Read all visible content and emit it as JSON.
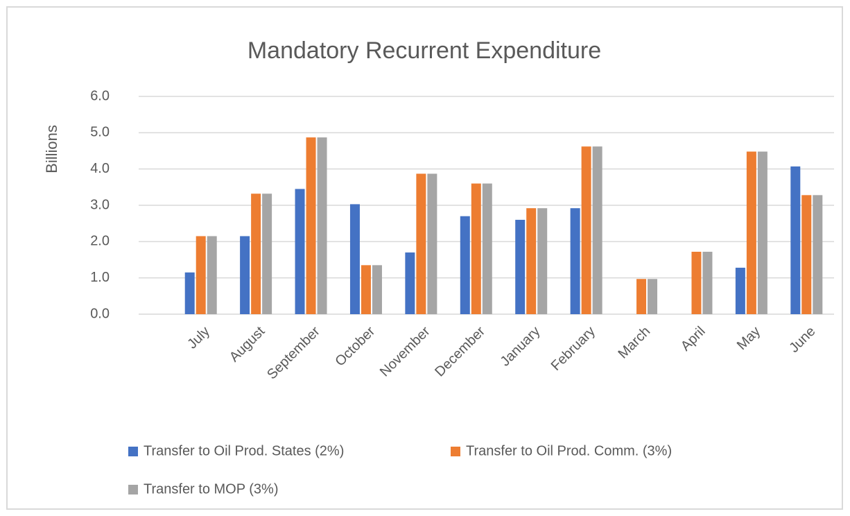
{
  "chart_data": {
    "type": "bar",
    "title": "Mandatory Recurrent Expenditure",
    "y_label": "Billions",
    "categories": [
      "July",
      "August",
      "September",
      "October",
      "November",
      "December",
      "January",
      "February",
      "March",
      "April",
      "May",
      "June"
    ],
    "series": [
      {
        "name": "Transfer to Oil Prod. States (2%)",
        "color": "#4472c4",
        "values": [
          1.15,
          2.15,
          3.45,
          3.03,
          1.7,
          2.7,
          2.6,
          2.92,
          null,
          null,
          1.28,
          4.07
        ]
      },
      {
        "name": "Transfer to Oil Prod. Comm. (3%)",
        "color": "#ed7d31",
        "values": [
          2.15,
          3.32,
          4.87,
          1.35,
          3.87,
          3.6,
          2.92,
          4.62,
          0.97,
          1.72,
          4.48,
          3.28
        ]
      },
      {
        "name": "Transfer to MOP (3%)",
        "color": "#a5a5a5",
        "values": [
          2.15,
          3.32,
          4.87,
          1.35,
          3.87,
          3.6,
          2.92,
          4.62,
          0.97,
          1.72,
          4.48,
          3.28
        ]
      }
    ],
    "ylim": [
      0,
      6
    ],
    "yticks": [
      {
        "value": 0,
        "label": "0.0"
      },
      {
        "value": 1,
        "label": "1.0"
      },
      {
        "value": 2,
        "label": "2.0"
      },
      {
        "value": 3,
        "label": "3.0"
      },
      {
        "value": 4,
        "label": "4.0"
      },
      {
        "value": 5,
        "label": "5.0"
      },
      {
        "value": 6,
        "label": "6.0"
      }
    ],
    "grid": true,
    "legend": "bottom"
  }
}
